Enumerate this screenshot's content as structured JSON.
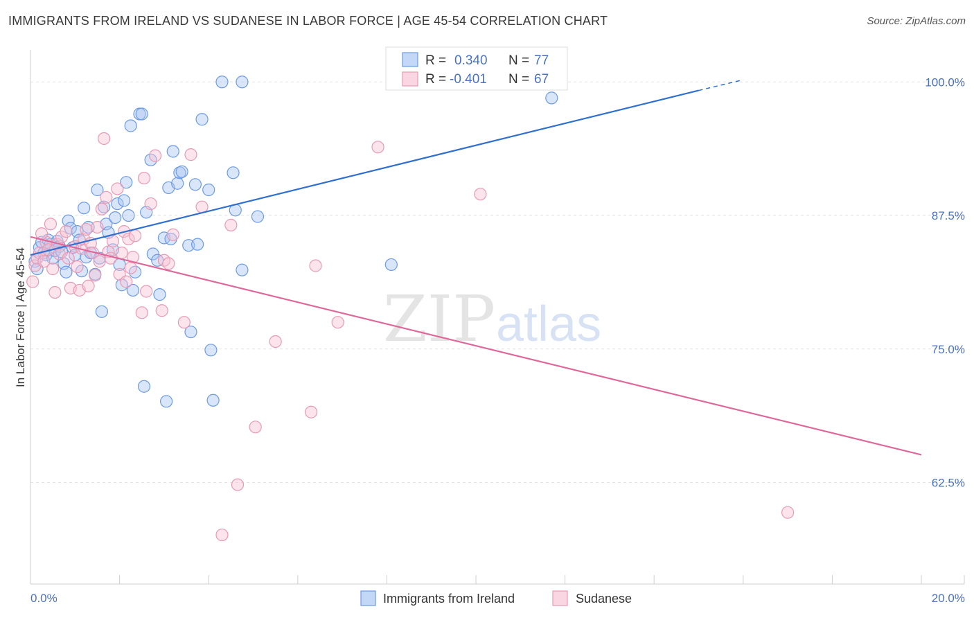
{
  "header": {
    "title": "IMMIGRANTS FROM IRELAND VS SUDANESE IN LABOR FORCE | AGE 45-54 CORRELATION CHART",
    "source": "Source: ZipAtlas.com"
  },
  "watermark": {
    "zip": "ZIP",
    "atlas": "atlas"
  },
  "chart_data": {
    "type": "scatter",
    "ylabel": "In Labor Force | Age 45-54",
    "xlim": [
      0,
      20
    ],
    "ylim": [
      53,
      103
    ],
    "x_tick_labels": [
      "0.0%",
      "20.0%"
    ],
    "y_ticks": [
      62.5,
      75.0,
      87.5,
      100.0
    ],
    "y_tick_labels": [
      "62.5%",
      "75.0%",
      "87.5%",
      "100.0%"
    ],
    "grid": true,
    "legend_position": "top-center",
    "legend": [
      {
        "r_label": "R =",
        "r_value": "0.340",
        "n_label": "N =",
        "n_value": "77"
      },
      {
        "r_label": "R =",
        "r_value": "-0.401",
        "n_label": "N =",
        "n_value": "67"
      }
    ],
    "series": [
      {
        "name": "Immigrants from Ireland",
        "color": "#6b9ae6",
        "fill": "#aac6f2",
        "trend_color": "#2f6fd0",
        "trend": {
          "x0": 0.0,
          "y0": 83.8,
          "x1": 15.0,
          "y1": 99.2,
          "dash_to_x": 16.0,
          "dash_to_y": 100.2
        },
        "points": [
          [
            0.1,
            83.2
          ],
          [
            0.15,
            82.5
          ],
          [
            0.2,
            84.5
          ],
          [
            0.25,
            85.0
          ],
          [
            0.3,
            84.0
          ],
          [
            0.35,
            83.8
          ],
          [
            0.4,
            85.2
          ],
          [
            0.45,
            84.8
          ],
          [
            0.5,
            83.5
          ],
          [
            0.55,
            84.2
          ],
          [
            0.6,
            85.1
          ],
          [
            0.65,
            84.6
          ],
          [
            0.7,
            84.1
          ],
          [
            0.75,
            83.0
          ],
          [
            0.8,
            82.2
          ],
          [
            0.85,
            87.0
          ],
          [
            0.9,
            86.3
          ],
          [
            0.95,
            84.5
          ],
          [
            1.0,
            83.8
          ],
          [
            1.05,
            86.0
          ],
          [
            1.1,
            85.2
          ],
          [
            1.15,
            82.3
          ],
          [
            1.2,
            88.2
          ],
          [
            1.25,
            83.6
          ],
          [
            1.3,
            86.4
          ],
          [
            1.35,
            84.0
          ],
          [
            1.45,
            82.0
          ],
          [
            1.5,
            89.9
          ],
          [
            1.55,
            83.5
          ],
          [
            1.6,
            78.5
          ],
          [
            1.65,
            88.3
          ],
          [
            1.7,
            86.7
          ],
          [
            1.75,
            85.9
          ],
          [
            1.85,
            84.3
          ],
          [
            1.9,
            87.3
          ],
          [
            1.95,
            88.6
          ],
          [
            2.0,
            82.9
          ],
          [
            2.05,
            81.0
          ],
          [
            2.1,
            88.9
          ],
          [
            2.15,
            90.6
          ],
          [
            2.2,
            87.5
          ],
          [
            2.25,
            95.9
          ],
          [
            2.3,
            80.5
          ],
          [
            2.35,
            82.2
          ],
          [
            2.45,
            97.0
          ],
          [
            2.5,
            97.0
          ],
          [
            2.55,
            71.5
          ],
          [
            2.6,
            87.8
          ],
          [
            2.7,
            92.7
          ],
          [
            2.75,
            83.9
          ],
          [
            2.85,
            83.3
          ],
          [
            2.9,
            80.1
          ],
          [
            3.0,
            85.4
          ],
          [
            3.05,
            70.1
          ],
          [
            3.1,
            90.1
          ],
          [
            3.15,
            85.3
          ],
          [
            3.2,
            93.5
          ],
          [
            3.3,
            90.5
          ],
          [
            3.35,
            91.5
          ],
          [
            3.4,
            91.6
          ],
          [
            3.55,
            84.7
          ],
          [
            3.6,
            76.6
          ],
          [
            3.7,
            90.4
          ],
          [
            3.75,
            84.8
          ],
          [
            3.85,
            96.5
          ],
          [
            4.0,
            89.9
          ],
          [
            4.05,
            74.9
          ],
          [
            4.1,
            70.2
          ],
          [
            4.3,
            100.0
          ],
          [
            4.55,
            91.5
          ],
          [
            4.6,
            88.0
          ],
          [
            4.75,
            82.4
          ],
          [
            4.75,
            100.0
          ],
          [
            5.1,
            87.4
          ],
          [
            8.1,
            82.9
          ],
          [
            10.0,
            100.0
          ],
          [
            11.7,
            98.5
          ]
        ]
      },
      {
        "name": "Sudanese",
        "color": "#e89ab3",
        "fill": "#f6c4d4",
        "trend_color": "#e0679a",
        "trend": {
          "x0": 0.0,
          "y0": 85.5,
          "x1": 20.0,
          "y1": 65.1
        },
        "points": [
          [
            0.05,
            81.3
          ],
          [
            0.1,
            82.8
          ],
          [
            0.15,
            83.5
          ],
          [
            0.2,
            84.0
          ],
          [
            0.3,
            83.2
          ],
          [
            0.35,
            85.0
          ],
          [
            0.4,
            84.3
          ],
          [
            0.45,
            86.7
          ],
          [
            0.5,
            82.5
          ],
          [
            0.55,
            80.3
          ],
          [
            0.6,
            84.8
          ],
          [
            0.65,
            83.9
          ],
          [
            0.7,
            85.5
          ],
          [
            0.8,
            86.0
          ],
          [
            0.85,
            83.5
          ],
          [
            0.9,
            80.7
          ],
          [
            1.0,
            84.6
          ],
          [
            1.05,
            82.7
          ],
          [
            1.1,
            80.5
          ],
          [
            1.15,
            84.4
          ],
          [
            1.2,
            85.3
          ],
          [
            1.25,
            86.2
          ],
          [
            1.3,
            80.9
          ],
          [
            1.35,
            84.9
          ],
          [
            1.4,
            84.0
          ],
          [
            1.5,
            86.4
          ],
          [
            1.55,
            83.2
          ],
          [
            1.6,
            88.1
          ],
          [
            1.65,
            94.7
          ],
          [
            1.7,
            89.2
          ],
          [
            1.75,
            84.1
          ],
          [
            1.8,
            83.5
          ],
          [
            1.85,
            85.1
          ],
          [
            1.95,
            90.0
          ],
          [
            2.0,
            82.0
          ],
          [
            2.05,
            84.0
          ],
          [
            2.1,
            86.0
          ],
          [
            2.15,
            81.3
          ],
          [
            2.2,
            85.3
          ],
          [
            2.3,
            83.6
          ],
          [
            2.35,
            85.6
          ],
          [
            2.5,
            78.4
          ],
          [
            2.55,
            91.0
          ],
          [
            2.6,
            80.4
          ],
          [
            2.7,
            88.6
          ],
          [
            2.8,
            93.1
          ],
          [
            2.95,
            78.6
          ],
          [
            3.0,
            83.3
          ],
          [
            3.1,
            83.0
          ],
          [
            3.2,
            85.7
          ],
          [
            3.45,
            77.5
          ],
          [
            3.6,
            93.2
          ],
          [
            3.85,
            88.3
          ],
          [
            4.3,
            57.6
          ],
          [
            4.5,
            86.6
          ],
          [
            4.65,
            62.3
          ],
          [
            5.05,
            67.7
          ],
          [
            5.5,
            75.7
          ],
          [
            6.3,
            69.1
          ],
          [
            6.4,
            82.8
          ],
          [
            6.9,
            77.5
          ],
          [
            7.8,
            93.9
          ],
          [
            10.1,
            89.5
          ],
          [
            17.0,
            59.7
          ],
          [
            0.25,
            85.8
          ],
          [
            1.45,
            81.9
          ],
          [
            2.25,
            82.6
          ]
        ]
      }
    ]
  },
  "bottom_legend": [
    "Immigrants from Ireland",
    "Sudanese"
  ]
}
